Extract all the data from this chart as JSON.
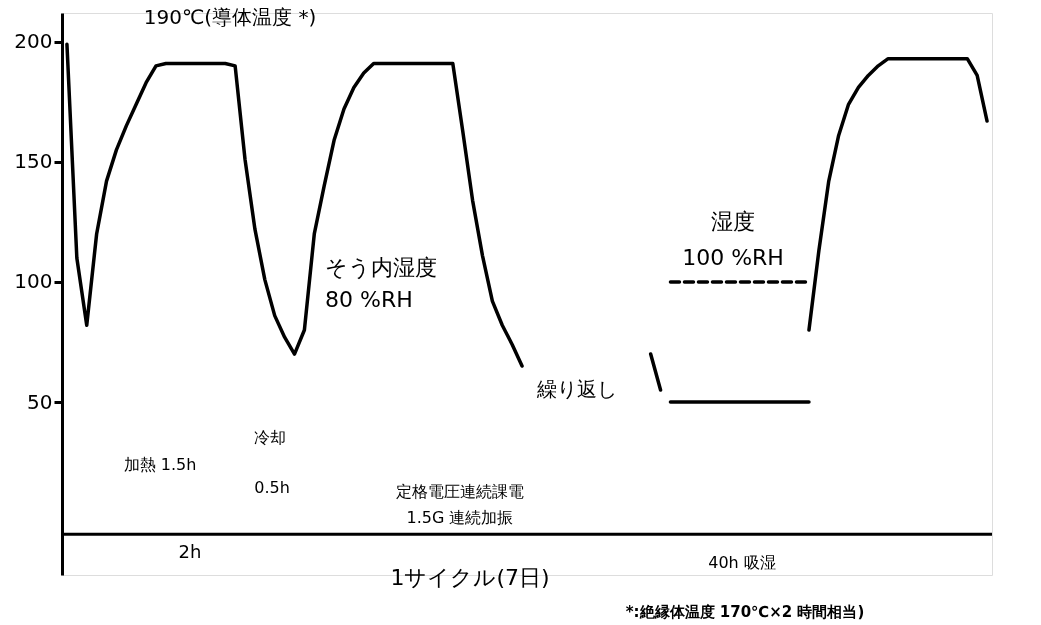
{
  "chart_data": {
    "type": "line",
    "categories": [
      null,
      null,
      null,
      null,
      null,
      null,
      null,
      null,
      null,
      null,
      null,
      null,
      null,
      null,
      null,
      null,
      null,
      null,
      null,
      null,
      null,
      null,
      null,
      null,
      null,
      null,
      null,
      null,
      null,
      null,
      null,
      null,
      null,
      null,
      null,
      null,
      null,
      null,
      null,
      null,
      null,
      null,
      null,
      null,
      null,
      null,
      null,
      null,
      null,
      null,
      null,
      null,
      null,
      null,
      null,
      null,
      null,
      null,
      null,
      null,
      null,
      null,
      null,
      null,
      null,
      null,
      null,
      null,
      null,
      null,
      null,
      null,
      null,
      null,
      null,
      null,
      null,
      null,
      null,
      null,
      null,
      null,
      null,
      null,
      null,
      null,
      null,
      null,
      null,
      null,
      null,
      null,
      null,
      null
    ],
    "series": [
      {
        "color": "#000000",
        "line_style": "solid",
        "values": [
          199,
          110,
          82,
          120,
          142,
          155,
          165,
          174,
          183,
          190,
          191,
          191,
          191,
          191,
          191,
          191,
          191,
          190,
          151,
          122,
          101,
          86,
          77,
          70,
          80,
          120,
          140,
          159,
          172,
          181,
          187,
          191,
          191,
          191,
          191,
          191,
          191,
          191,
          191,
          191,
          163,
          134,
          111,
          92,
          82,
          74,
          65,
          null,
          null,
          null,
          null,
          null,
          null,
          null,
          null,
          null,
          null,
          null,
          null,
          70,
          55,
          null,
          null,
          null,
          null,
          null,
          null,
          null,
          null,
          null,
          null,
          null,
          null,
          null,
          null,
          80,
          113,
          142,
          161,
          174,
          181,
          186,
          190,
          193,
          193,
          193,
          193,
          193,
          193,
          193,
          193,
          193,
          186,
          167
        ]
      },
      {
        "color": "#000000",
        "line_style": "solid",
        "values": [
          null,
          null,
          null,
          null,
          null,
          null,
          null,
          null,
          null,
          null,
          null,
          null,
          null,
          null,
          null,
          null,
          null,
          null,
          null,
          null,
          null,
          null,
          null,
          null,
          null,
          null,
          null,
          null,
          null,
          null,
          null,
          null,
          null,
          null,
          null,
          null,
          null,
          null,
          null,
          null,
          null,
          null,
          null,
          null,
          null,
          null,
          null,
          null,
          null,
          null,
          null,
          null,
          null,
          null,
          null,
          null,
          null,
          null,
          null,
          null,
          null,
          50,
          50,
          50,
          50,
          50,
          50,
          50,
          50,
          50,
          50,
          50,
          50,
          50,
          50,
          50,
          null,
          null,
          null,
          null,
          null,
          null,
          null,
          null,
          null,
          null,
          null,
          null,
          null,
          null,
          null,
          null,
          null,
          null
        ]
      },
      {
        "color": "#000000",
        "line_style": "dashed",
        "values": [
          null,
          null,
          null,
          null,
          null,
          null,
          null,
          null,
          null,
          null,
          null,
          null,
          null,
          null,
          null,
          null,
          null,
          null,
          null,
          null,
          null,
          null,
          null,
          null,
          null,
          null,
          null,
          null,
          null,
          null,
          null,
          null,
          null,
          null,
          null,
          null,
          null,
          null,
          null,
          null,
          null,
          null,
          null,
          null,
          null,
          null,
          null,
          null,
          null,
          null,
          null,
          null,
          null,
          null,
          null,
          null,
          null,
          null,
          null,
          null,
          null,
          100,
          100,
          100,
          100,
          100,
          100,
          100,
          100,
          100,
          100,
          100,
          100,
          100,
          100,
          100,
          null,
          null,
          null,
          null,
          null,
          null,
          null,
          null,
          null,
          null,
          null,
          null,
          null,
          null,
          null,
          null,
          null,
          null
        ]
      }
    ],
    "ylim": [
      -22,
      212
    ],
    "yticks": [
      50,
      100,
      150,
      200
    ],
    "tick_labels": "y",
    "grid": false,
    "marker": "none",
    "ref_lines": [
      {
        "axis": "y",
        "value": -5,
        "color": "#000000"
      }
    ],
    "annotations": [
      "190℃(導体温度 *)",
      "そう内湿度",
      "80 %RH",
      "繰り返し",
      "湿度",
      "100 %RH",
      "加熱 1.5h",
      "冷却",
      "0.5h",
      "定格電圧連続課電",
      "1.5G 連続加振",
      "2h",
      "1サイクル(7日)",
      "40h 吸湿",
      "*:絶縁体温度 170℃×2 時間相当)"
    ]
  }
}
